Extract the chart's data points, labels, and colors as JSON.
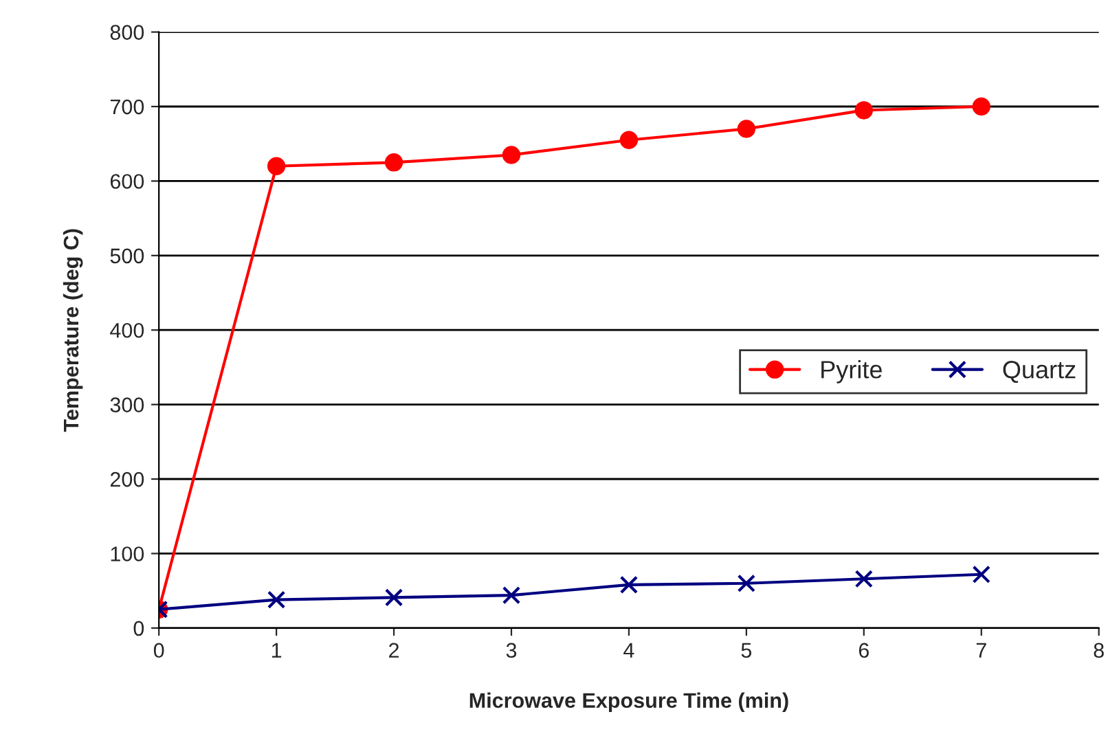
{
  "chart_data": {
    "type": "line",
    "xlabel": "Microwave Exposure Time (min)",
    "ylabel": "Temperature (deg C)",
    "x": [
      0,
      1,
      2,
      3,
      4,
      5,
      6,
      7
    ],
    "series": [
      {
        "name": "Pyrite",
        "color": "#ff0000",
        "marker": "circle",
        "values": [
          25,
          620,
          625,
          635,
          655,
          670,
          695,
          700
        ]
      },
      {
        "name": "Quartz",
        "color": "#000080",
        "marker": "cross",
        "values": [
          25,
          38,
          41,
          44,
          58,
          60,
          66,
          72
        ]
      }
    ],
    "xlim": [
      0,
      8
    ],
    "xticks": [
      0,
      1,
      2,
      3,
      4,
      5,
      6,
      7,
      8
    ],
    "ylim": [
      0,
      800
    ],
    "yticks": [
      0,
      100,
      200,
      300,
      400,
      500,
      600,
      700,
      800
    ],
    "grid": "y",
    "legend": "right",
    "line_style": "solid"
  }
}
